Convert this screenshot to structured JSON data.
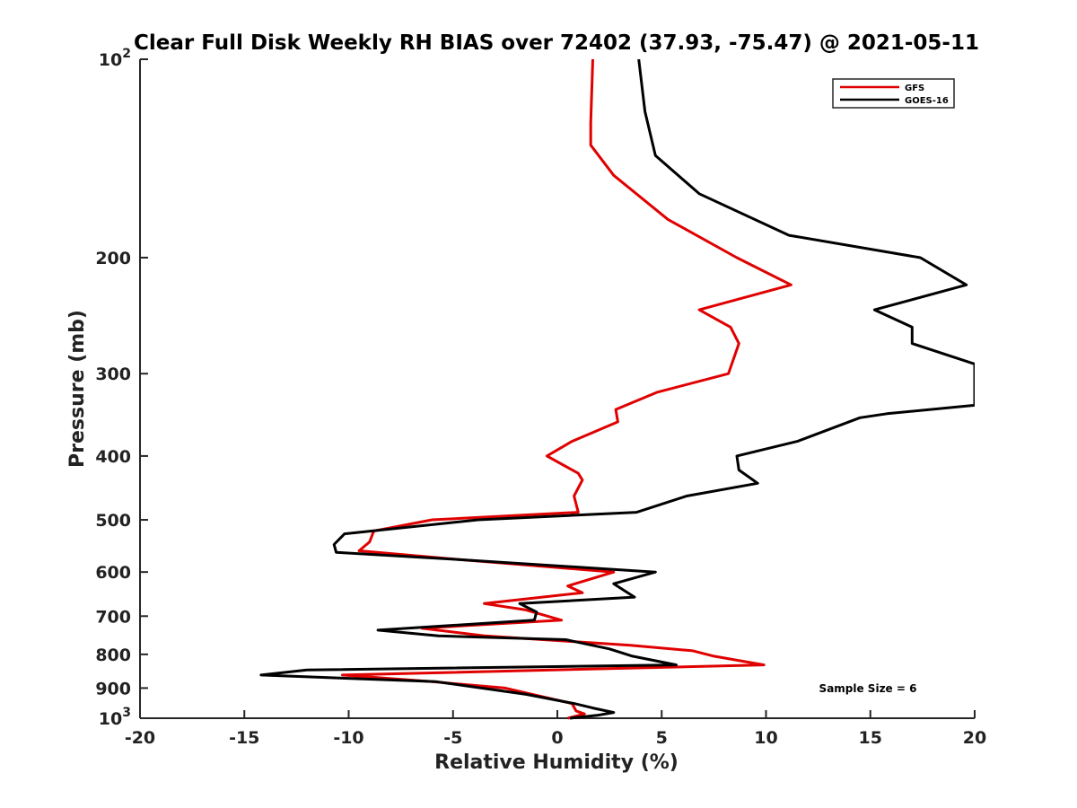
{
  "chart_data": {
    "type": "line",
    "title": "Clear Full Disk Weekly RH BIAS over 72402 (37.93, -75.47) @ 2021-05-11",
    "xlabel": "Relative Humidity (%)",
    "ylabel": "Pressure (mb)",
    "xlim": [
      -20,
      20
    ],
    "ylim": [
      100,
      1000
    ],
    "yscale": "log",
    "y_reversed": true,
    "grid": false,
    "legend_location": "top-right",
    "x_ticks": [
      "-20",
      "-15",
      "-10",
      "-5",
      "0",
      "5",
      "10",
      "15",
      "20"
    ],
    "y_ticks": [
      {
        "value": 100,
        "base": "10",
        "exp": "2"
      },
      {
        "value": 200,
        "label": "200"
      },
      {
        "value": 300,
        "label": "300"
      },
      {
        "value": 400,
        "label": "400"
      },
      {
        "value": 500,
        "label": "500"
      },
      {
        "value": 600,
        "label": "600"
      },
      {
        "value": 700,
        "label": "700"
      },
      {
        "value": 800,
        "label": "800"
      },
      {
        "value": 900,
        "label": "900"
      },
      {
        "value": 1000,
        "base": "10",
        "exp": "3"
      }
    ],
    "annotation": "Sample Size = 6",
    "series": [
      {
        "name": "GFS",
        "color": "#e00000",
        "points": [
          [
            1.7,
            100
          ],
          [
            1.6,
            125
          ],
          [
            1.6,
            135
          ],
          [
            2.7,
            150
          ],
          [
            5.3,
            175
          ],
          [
            8.6,
            200
          ],
          [
            11.2,
            220
          ],
          [
            6.8,
            240
          ],
          [
            8.3,
            255
          ],
          [
            8.7,
            270
          ],
          [
            8.2,
            300
          ],
          [
            4.8,
            320
          ],
          [
            2.8,
            340
          ],
          [
            2.9,
            355
          ],
          [
            0.7,
            380
          ],
          [
            -0.5,
            400
          ],
          [
            1.0,
            425
          ],
          [
            1.2,
            435
          ],
          [
            0.8,
            460
          ],
          [
            1.0,
            487
          ],
          [
            -6.0,
            500
          ],
          [
            -8.8,
            520
          ],
          [
            -9.0,
            540
          ],
          [
            -9.5,
            557
          ],
          [
            -4.5,
            575
          ],
          [
            2.7,
            600
          ],
          [
            0.5,
            630
          ],
          [
            1.2,
            645
          ],
          [
            -3.5,
            670
          ],
          [
            -1.5,
            685
          ],
          [
            0.2,
            710
          ],
          [
            -6.5,
            730
          ],
          [
            -3.5,
            750
          ],
          [
            3.5,
            775
          ],
          [
            6.5,
            790
          ],
          [
            7.5,
            805
          ],
          [
            9.9,
            830
          ],
          [
            -10.3,
            860
          ],
          [
            -6.0,
            880
          ],
          [
            -2.5,
            900
          ],
          [
            0.7,
            950
          ],
          [
            0.9,
            975
          ],
          [
            1.3,
            985
          ],
          [
            0.5,
            1000
          ]
        ]
      },
      {
        "name": "GOES-16",
        "color": "#000000",
        "points": [
          [
            3.9,
            100
          ],
          [
            4.2,
            120
          ],
          [
            4.7,
            140
          ],
          [
            6.8,
            160
          ],
          [
            11.1,
            185
          ],
          [
            17.4,
            200
          ],
          [
            19.6,
            220
          ],
          [
            15.2,
            240
          ],
          [
            17.0,
            255
          ],
          [
            17.0,
            270
          ],
          [
            20.0,
            290
          ],
          [
            20.0,
            320
          ],
          [
            20.0,
            335
          ],
          [
            15.8,
            345
          ],
          [
            14.5,
            350
          ],
          [
            11.5,
            380
          ],
          [
            8.6,
            400
          ],
          [
            8.7,
            420
          ],
          [
            9.6,
            440
          ],
          [
            6.2,
            460
          ],
          [
            3.8,
            487
          ],
          [
            -3.8,
            500
          ],
          [
            -10.2,
            525
          ],
          [
            -10.7,
            545
          ],
          [
            -10.6,
            560
          ],
          [
            -4.5,
            575
          ],
          [
            4.7,
            600
          ],
          [
            2.7,
            625
          ],
          [
            3.7,
            655
          ],
          [
            -1.8,
            670
          ],
          [
            -1.0,
            690
          ],
          [
            -1.1,
            710
          ],
          [
            -8.6,
            735
          ],
          [
            -5.7,
            750
          ],
          [
            0.4,
            760
          ],
          [
            2.5,
            785
          ],
          [
            3.6,
            805
          ],
          [
            5.7,
            830
          ],
          [
            -12.0,
            845
          ],
          [
            -14.2,
            860
          ],
          [
            -5.8,
            880
          ],
          [
            -1.5,
            920
          ],
          [
            0.8,
            950
          ],
          [
            1.7,
            965
          ],
          [
            2.7,
            980
          ],
          [
            1.9,
            990
          ],
          [
            0.6,
            1000
          ]
        ]
      }
    ]
  }
}
